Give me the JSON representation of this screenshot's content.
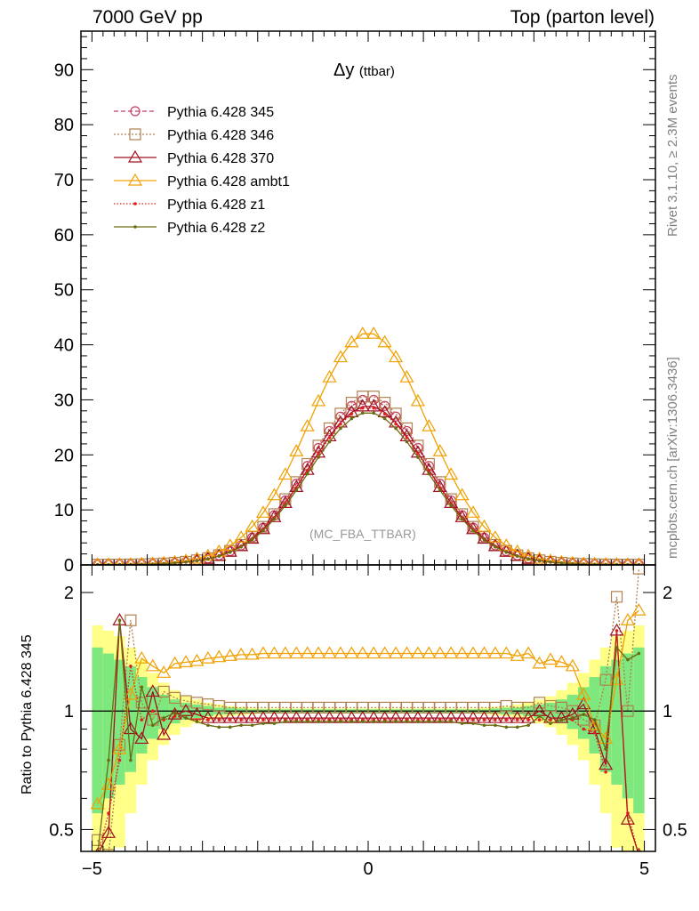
{
  "header": {
    "left": "7000 GeV pp",
    "right": "Top (parton level)"
  },
  "side_labels": {
    "rivet": "Rivet 3.1.10, ≥ 2.3M events",
    "mcplots": "mcplots.cern.ch [arXiv:1306.3436]"
  },
  "chart_data": [
    {
      "type": "line",
      "title": "Δy",
      "title_suffix": "(ttbar)",
      "annotation": "(MC_FBA_TTBAR)",
      "xlim": [
        -5.2,
        5.2
      ],
      "ylim": [
        0,
        97
      ],
      "yticks": [
        0,
        10,
        20,
        30,
        40,
        50,
        60,
        70,
        80,
        90
      ],
      "x": [
        -4.9,
        -4.7,
        -4.5,
        -4.3,
        -4.1,
        -3.9,
        -3.7,
        -3.5,
        -3.3,
        -3.1,
        -2.9,
        -2.7,
        -2.5,
        -2.3,
        -2.1,
        -1.9,
        -1.7,
        -1.5,
        -1.3,
        -1.1,
        -0.9,
        -0.7,
        -0.5,
        -0.3,
        -0.1,
        0.1,
        0.3,
        0.5,
        0.7,
        0.9,
        1.1,
        1.3,
        1.5,
        1.7,
        1.9,
        2.1,
        2.3,
        2.5,
        2.7,
        2.9,
        3.1,
        3.3,
        3.5,
        3.7,
        3.9,
        4.1,
        4.3,
        4.5,
        4.7,
        4.9
      ],
      "series": [
        {
          "name": "Pythia 6.428 345",
          "color": "#c83c64",
          "marker": "circle",
          "dash": "5,3",
          "values": [
            0.05,
            0.06,
            0.07,
            0.09,
            0.12,
            0.17,
            0.25,
            0.37,
            0.54,
            0.81,
            1.18,
            1.73,
            2.5,
            3.55,
            4.96,
            6.78,
            9.04,
            11.72,
            14.75,
            17.99,
            21.26,
            24.34,
            26.96,
            28.9,
            30.0,
            30.0,
            28.9,
            26.96,
            24.34,
            21.26,
            17.99,
            14.75,
            11.72,
            9.04,
            6.78,
            4.96,
            3.55,
            2.5,
            1.73,
            1.18,
            0.81,
            0.54,
            0.37,
            0.25,
            0.17,
            0.12,
            0.09,
            0.07,
            0.06,
            0.05
          ]
        },
        {
          "name": "Pythia 6.428 346",
          "color": "#b08050",
          "marker": "square",
          "dash": "2,2",
          "values": [
            0.05,
            0.06,
            0.07,
            0.09,
            0.13,
            0.18,
            0.27,
            0.39,
            0.57,
            0.84,
            1.21,
            1.77,
            2.55,
            3.62,
            5.06,
            6.92,
            9.22,
            11.95,
            15.05,
            18.35,
            21.68,
            24.83,
            27.5,
            29.48,
            30.6,
            30.6,
            29.48,
            27.5,
            24.83,
            21.68,
            18.35,
            15.05,
            11.95,
            9.22,
            6.92,
            5.06,
            3.62,
            2.55,
            1.77,
            1.21,
            0.84,
            0.57,
            0.39,
            0.27,
            0.18,
            0.13,
            0.09,
            0.07,
            0.06,
            0.05
          ]
        },
        {
          "name": "Pythia 6.428 370",
          "color": "#a01020",
          "marker": "triangle",
          "dash": "",
          "values": [
            0.05,
            0.06,
            0.07,
            0.08,
            0.11,
            0.16,
            0.24,
            0.36,
            0.52,
            0.78,
            1.13,
            1.66,
            2.4,
            3.41,
            4.76,
            6.51,
            8.68,
            11.25,
            14.16,
            17.27,
            20.41,
            23.37,
            25.88,
            27.74,
            28.8,
            28.8,
            27.74,
            25.88,
            23.37,
            20.41,
            17.27,
            14.16,
            11.25,
            8.68,
            6.51,
            4.76,
            3.41,
            2.4,
            1.66,
            1.13,
            0.78,
            0.52,
            0.36,
            0.24,
            0.16,
            0.11,
            0.08,
            0.07,
            0.06,
            0.05
          ]
        },
        {
          "name": "Pythia 6.428 ambt1",
          "color": "#f0a000",
          "marker": "triangle",
          "dash": "",
          "values": [
            0.07,
            0.08,
            0.1,
            0.12,
            0.17,
            0.24,
            0.35,
            0.52,
            0.76,
            1.13,
            1.65,
            2.42,
            3.5,
            4.97,
            6.94,
            9.49,
            12.66,
            16.41,
            20.65,
            25.19,
            29.76,
            34.08,
            37.74,
            40.46,
            42.0,
            42.0,
            40.46,
            37.74,
            34.08,
            29.76,
            25.19,
            20.65,
            16.41,
            12.66,
            9.49,
            6.94,
            4.97,
            3.5,
            2.42,
            1.65,
            1.13,
            0.76,
            0.52,
            0.35,
            0.24,
            0.17,
            0.12,
            0.1,
            0.08,
            0.07
          ]
        },
        {
          "name": "Pythia 6.428 z1",
          "color": "#e02020",
          "marker": "dot",
          "dash": "1.5,2",
          "values": [
            0.05,
            0.06,
            0.07,
            0.09,
            0.11,
            0.16,
            0.24,
            0.35,
            0.52,
            0.77,
            1.12,
            1.64,
            2.38,
            3.37,
            4.71,
            6.44,
            8.59,
            11.13,
            14.01,
            17.09,
            20.2,
            23.12,
            25.61,
            27.46,
            28.5,
            28.5,
            27.46,
            25.61,
            23.12,
            20.2,
            17.09,
            14.01,
            11.13,
            8.59,
            6.44,
            4.71,
            3.37,
            2.38,
            1.64,
            1.12,
            0.77,
            0.52,
            0.35,
            0.24,
            0.16,
            0.11,
            0.09,
            0.07,
            0.06,
            0.05
          ]
        },
        {
          "name": "Pythia 6.428 z2",
          "color": "#6b6b10",
          "marker": "dot",
          "dash": "",
          "values": [
            0.05,
            0.06,
            0.07,
            0.08,
            0.11,
            0.15,
            0.23,
            0.34,
            0.5,
            0.74,
            1.09,
            1.59,
            2.3,
            3.27,
            4.56,
            6.24,
            8.32,
            10.78,
            13.57,
            16.56,
            19.57,
            22.4,
            24.81,
            26.6,
            27.6,
            27.6,
            26.6,
            24.81,
            22.4,
            19.57,
            16.56,
            13.57,
            10.78,
            8.32,
            6.24,
            4.56,
            3.27,
            2.3,
            1.59,
            1.09,
            0.74,
            0.5,
            0.34,
            0.23,
            0.15,
            0.11,
            0.08,
            0.07,
            0.06,
            0.05
          ]
        }
      ]
    },
    {
      "type": "line",
      "ylabel": "Ratio to Pythia 6.428 345",
      "scale": "log",
      "xlim": [
        -5.2,
        5.2
      ],
      "ylim": [
        0.44,
        2.35
      ],
      "reference": 1,
      "xticks": [
        "−5",
        "0",
        "5"
      ],
      "xtick_values": [
        -5,
        0,
        5
      ],
      "yticks": [
        "0.5",
        "1",
        "2"
      ],
      "ytick_values": [
        0.5,
        1,
        2
      ],
      "band_inner_color": "#7ee87e",
      "band_outer_color": "#ffff88",
      "x": [
        -4.9,
        -4.7,
        -4.5,
        -4.3,
        -4.1,
        -3.9,
        -3.7,
        -3.5,
        -3.3,
        -3.1,
        -2.9,
        -2.7,
        -2.5,
        -2.3,
        -2.1,
        -1.9,
        -1.7,
        -1.5,
        -1.3,
        -1.1,
        -0.9,
        -0.7,
        -0.5,
        -0.3,
        -0.1,
        0.1,
        0.3,
        0.5,
        0.7,
        0.9,
        1.1,
        1.3,
        1.5,
        1.7,
        1.9,
        2.1,
        2.3,
        2.5,
        2.7,
        2.9,
        3.1,
        3.3,
        3.5,
        3.7,
        3.9,
        4.1,
        4.3,
        4.5,
        4.7,
        4.9
      ],
      "band_inner": [
        0.45,
        0.4,
        0.35,
        0.3,
        0.22,
        0.15,
        0.1,
        0.07,
        0.05,
        0.04,
        0.03,
        0.02,
        0.02,
        0.015,
        0.01,
        0.01,
        0.01,
        0.01,
        0.01,
        0.01,
        0.01,
        0.01,
        0.01,
        0.01,
        0.01,
        0.01,
        0.01,
        0.01,
        0.01,
        0.01,
        0.01,
        0.01,
        0.01,
        0.01,
        0.01,
        0.01,
        0.015,
        0.02,
        0.02,
        0.03,
        0.04,
        0.05,
        0.07,
        0.1,
        0.15,
        0.22,
        0.3,
        0.35,
        0.4,
        0.45
      ],
      "band_outer": [
        0.65,
        0.6,
        0.55,
        0.45,
        0.35,
        0.25,
        0.18,
        0.13,
        0.09,
        0.07,
        0.05,
        0.04,
        0.03,
        0.025,
        0.02,
        0.015,
        0.015,
        0.015,
        0.015,
        0.015,
        0.015,
        0.015,
        0.015,
        0.015,
        0.015,
        0.015,
        0.015,
        0.015,
        0.015,
        0.015,
        0.015,
        0.015,
        0.015,
        0.015,
        0.015,
        0.02,
        0.025,
        0.03,
        0.04,
        0.05,
        0.07,
        0.09,
        0.13,
        0.18,
        0.25,
        0.35,
        0.45,
        0.55,
        0.6,
        0.65
      ],
      "series": [
        {
          "name": "Pythia 6.428 346",
          "color": "#b08050",
          "marker": "square",
          "dash": "2,2",
          "values": [
            0.47,
            0.43,
            0.82,
            1.7,
            1.05,
            0.95,
            1.12,
            1.08,
            1.06,
            1.05,
            1.04,
            1.03,
            1.02,
            1.02,
            1.02,
            1.02,
            1.02,
            1.02,
            1.02,
            1.02,
            1.02,
            1.02,
            1.02,
            1.02,
            1.02,
            1.02,
            1.02,
            1.02,
            1.02,
            1.02,
            1.02,
            1.02,
            1.02,
            1.02,
            1.02,
            1.02,
            1.02,
            1.03,
            1.02,
            1.02,
            1.05,
            1.03,
            1.02,
            1.0,
            0.95,
            0.92,
            1.2,
            1.95,
            1.0,
            2.3
          ]
        },
        {
          "name": "Pythia 6.428 370",
          "color": "#a01020",
          "marker": "triangle",
          "dash": "",
          "values": [
            0.43,
            0.49,
            1.7,
            0.9,
            0.85,
            1.12,
            0.87,
            0.98,
            1.0,
            0.98,
            0.96,
            0.96,
            0.96,
            0.96,
            0.96,
            0.96,
            0.96,
            0.96,
            0.96,
            0.96,
            0.96,
            0.96,
            0.96,
            0.96,
            0.96,
            0.96,
            0.96,
            0.96,
            0.96,
            0.96,
            0.96,
            0.96,
            0.96,
            0.96,
            0.96,
            0.96,
            0.96,
            0.96,
            0.96,
            0.96,
            1.0,
            0.96,
            0.96,
            0.98,
            1.04,
            0.9,
            0.73,
            1.6,
            0.53,
            0.41
          ]
        },
        {
          "name": "Pythia 6.428 ambt1",
          "color": "#f0a000",
          "marker": "triangle",
          "dash": "",
          "values": [
            0.58,
            0.65,
            0.8,
            1.1,
            1.36,
            1.3,
            1.25,
            1.32,
            1.33,
            1.34,
            1.36,
            1.37,
            1.38,
            1.39,
            1.39,
            1.4,
            1.4,
            1.4,
            1.4,
            1.4,
            1.4,
            1.4,
            1.4,
            1.4,
            1.4,
            1.4,
            1.4,
            1.4,
            1.4,
            1.4,
            1.4,
            1.4,
            1.4,
            1.4,
            1.4,
            1.4,
            1.4,
            1.4,
            1.38,
            1.4,
            1.32,
            1.35,
            1.33,
            1.3,
            1.1,
            0.92,
            0.85,
            1.2,
            1.7,
            1.8
          ]
        },
        {
          "name": "Pythia 6.428 z1",
          "color": "#e02020",
          "marker": "dot",
          "dash": "1.5,2",
          "values": [
            0.4,
            0.55,
            0.75,
            1.3,
            0.95,
            1.0,
            0.95,
            0.97,
            0.96,
            0.95,
            0.95,
            0.95,
            0.95,
            0.95,
            0.95,
            0.95,
            0.95,
            0.95,
            0.95,
            0.95,
            0.95,
            0.95,
            0.95,
            0.95,
            0.95,
            0.95,
            0.95,
            0.95,
            0.95,
            0.95,
            0.95,
            0.95,
            0.95,
            0.95,
            0.95,
            0.95,
            0.95,
            0.95,
            0.95,
            0.95,
            0.95,
            0.95,
            0.95,
            0.95,
            0.9,
            0.88,
            0.7,
            1.6,
            0.55,
            0.4
          ]
        },
        {
          "name": "Pythia 6.428 z2",
          "color": "#6b6b10",
          "marker": "dot",
          "dash": "",
          "values": [
            0.4,
            0.75,
            1.7,
            0.75,
            1.15,
            0.92,
            0.96,
            0.99,
            0.96,
            0.94,
            0.92,
            0.91,
            0.91,
            0.92,
            0.92,
            0.93,
            0.93,
            0.94,
            0.94,
            0.94,
            0.94,
            0.94,
            0.94,
            0.94,
            0.94,
            0.94,
            0.94,
            0.94,
            0.94,
            0.94,
            0.94,
            0.94,
            0.94,
            0.93,
            0.93,
            0.92,
            0.92,
            0.91,
            0.91,
            0.92,
            0.97,
            0.93,
            0.95,
            0.96,
            0.98,
            0.95,
            0.8,
            1.45,
            1.35,
            1.4
          ]
        }
      ]
    }
  ]
}
